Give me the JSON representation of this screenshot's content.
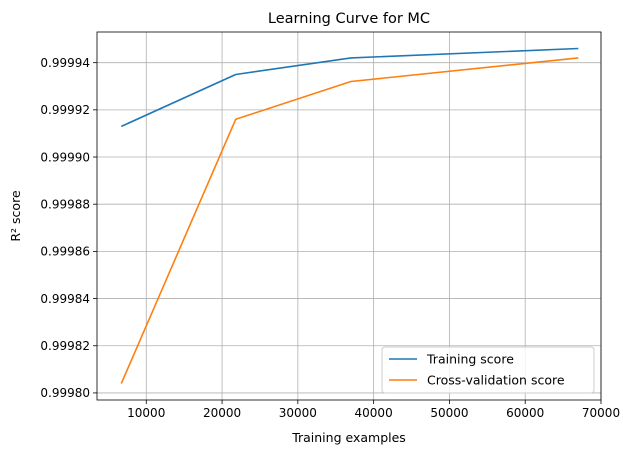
{
  "chart_data": {
    "type": "line",
    "title": "Learning Curve for MC",
    "xlabel": "Training examples",
    "ylabel": "R² score",
    "xlim": [
      3500,
      70000
    ],
    "ylim": [
      0.999797,
      0.999953
    ],
    "xticks": [
      10000,
      20000,
      30000,
      40000,
      50000,
      60000,
      70000
    ],
    "xtick_labels": [
      "10000",
      "20000",
      "30000",
      "40000",
      "50000",
      "60000",
      "70000"
    ],
    "yticks": [
      0.9998,
      0.99982,
      0.99984,
      0.99986,
      0.99988,
      0.9999,
      0.99992,
      0.99994
    ],
    "ytick_labels": [
      "0.99980",
      "0.99982",
      "0.99984",
      "0.99986",
      "0.99988",
      "0.99990",
      "0.99992",
      "0.99994"
    ],
    "grid": true,
    "legend_position": "lower-right",
    "x": [
      6700,
      21800,
      37000,
      67000
    ],
    "series": [
      {
        "name": "Training score",
        "color": "#1f77b4",
        "values": [
          0.999913,
          0.999935,
          0.999942,
          0.999946
        ]
      },
      {
        "name": "Cross-validation score",
        "color": "#ff7f0e",
        "values": [
          0.999804,
          0.999916,
          0.999932,
          0.999942
        ]
      }
    ]
  }
}
